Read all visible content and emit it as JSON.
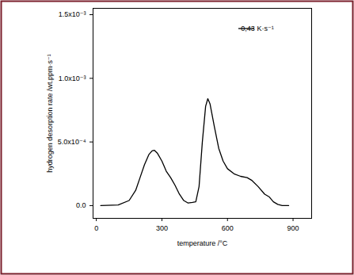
{
  "chart_data": {
    "type": "line",
    "x_label": "temperature /°C",
    "y_label": "hydrogen desorption rate /wt.ppm·s⁻¹",
    "x": [
      20,
      100,
      150,
      180,
      200,
      220,
      240,
      255,
      265,
      280,
      300,
      320,
      340,
      360,
      380,
      400,
      420,
      440,
      455,
      470,
      485,
      500,
      510,
      520,
      540,
      560,
      580,
      600,
      630,
      660,
      690,
      710,
      740,
      770,
      790,
      810,
      830,
      850,
      880
    ],
    "series": [
      {
        "name": "0,43 K·s⁻¹",
        "color": "#000000",
        "values": [
          0.0,
          5e-06,
          4e-05,
          0.00012,
          0.00022,
          0.00032,
          0.0004,
          0.00043,
          0.000435,
          0.00041,
          0.00035,
          0.00027,
          0.00022,
          0.00016,
          9e-05,
          4e-05,
          2e-05,
          2.5e-05,
          3e-05,
          0.00015,
          0.0005,
          0.00078,
          0.00084,
          0.0008,
          0.00062,
          0.00045,
          0.00035,
          0.00029,
          0.00025,
          0.00023,
          0.00022,
          0.0002,
          0.00015,
          9e-05,
          7e-05,
          3e-05,
          1e-05,
          0.0,
          0.0
        ]
      }
    ],
    "xlim": [
      -15,
      985
    ],
    "ylim": [
      -0.0001,
      0.00155
    ],
    "xticks": [
      0,
      300,
      600,
      900
    ],
    "yticks": [
      {
        "value": 0,
        "label": "0.0"
      },
      {
        "value": 0.0005,
        "label": "5.0x10⁻⁴"
      },
      {
        "value": 0.001,
        "label": "1.0x10⁻³"
      },
      {
        "value": 0.0015,
        "label": "1.5x10⁻³"
      }
    ],
    "legend": "upper right",
    "grid": false
  }
}
